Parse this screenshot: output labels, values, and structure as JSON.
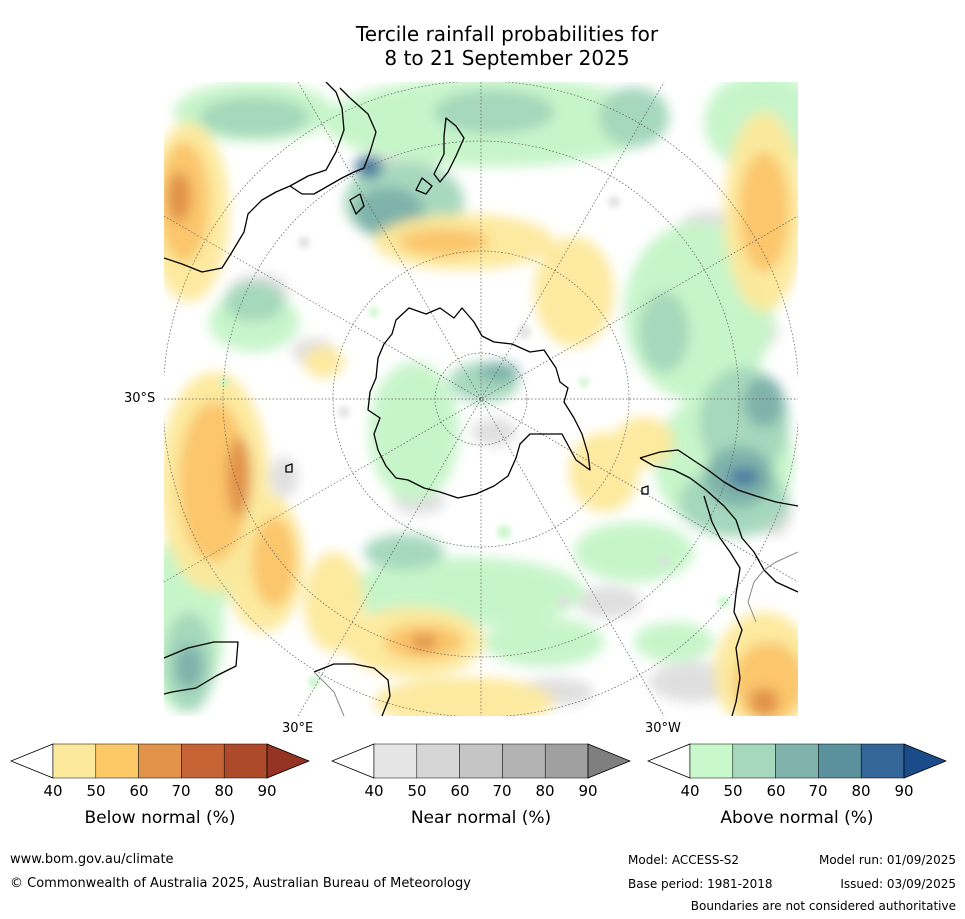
{
  "title": {
    "line1": "Tercile rainfall probabilities for",
    "line2": "8 to 21 September 2025"
  },
  "map": {
    "labels": {
      "lat30s": "30°S",
      "lon30e": "30°E",
      "lon30w": "30°W"
    },
    "colors": {
      "coast": "#000000",
      "graticule": "#555555",
      "sea_background": "#ffffff"
    }
  },
  "colorbars": [
    {
      "caption": "Below normal (%)",
      "ticks": [
        "40",
        "50",
        "60",
        "70",
        "80",
        "90"
      ],
      "colors": [
        "#ffffff",
        "#fde99b",
        "#fdc967",
        "#e1934a",
        "#c76435",
        "#ad4a2a",
        "#963423"
      ]
    },
    {
      "caption": "Near normal (%)",
      "ticks": [
        "40",
        "50",
        "60",
        "70",
        "80",
        "90"
      ],
      "colors": [
        "#ffffff",
        "#e5e5e5",
        "#d6d6d6",
        "#c5c5c5",
        "#b3b3b3",
        "#a0a0a0",
        "#7f7f7f"
      ]
    },
    {
      "caption": "Above normal (%)",
      "ticks": [
        "40",
        "50",
        "60",
        "70",
        "80",
        "90"
      ],
      "colors": [
        "#ffffff",
        "#c8f8cb",
        "#a5d8bd",
        "#7fb3ab",
        "#5a919c",
        "#346698",
        "#1b4c8a"
      ]
    }
  ],
  "footer": {
    "website": "www.bom.gov.au/climate",
    "copyright": "© Commonwealth of Australia 2025, Australian Bureau of Meteorology",
    "model": "Model: ACCESS-S2",
    "base_period": "Base period: 1981-2018",
    "model_run": "Model run: 01/09/2025",
    "issued": "Issued: 03/09/2025",
    "disclaimer": "Boundaries are not considered authoritative"
  }
}
